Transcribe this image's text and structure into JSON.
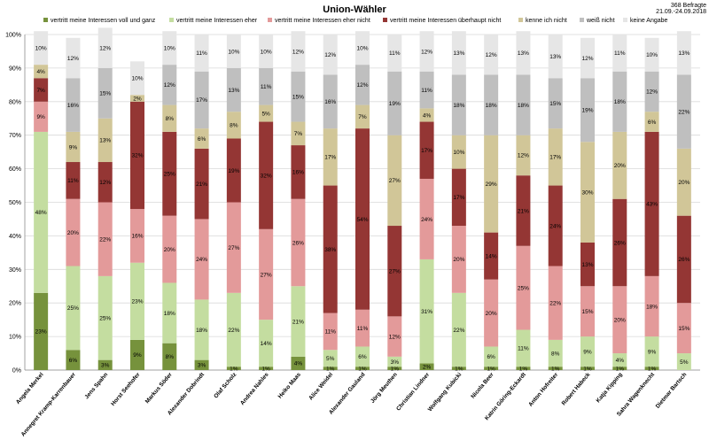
{
  "chart_data": {
    "type": "bar",
    "stacked": true,
    "percent": true,
    "title": "Union-Wähler",
    "sample_size": "368 Befragte",
    "date_range": "21.09.-24.09.2018",
    "ylim": [
      0,
      100
    ],
    "yticks": [
      "0%",
      "10%",
      "20%",
      "30%",
      "40%",
      "50%",
      "60%",
      "70%",
      "80%",
      "90%",
      "100%"
    ],
    "grid": true,
    "legend_position": "top",
    "categories": [
      "Angela Merkel",
      "Annegret Kramp-Karrenbauer",
      "Jens Spahn",
      "Horst Seehofer",
      "Markus Söder",
      "Alexander Dobrindt",
      "Olaf Scholz",
      "Andrea Nahles",
      "Heiko Maas",
      "Alice Weidel",
      "Alexander Gauland",
      "Jörg Meuthen",
      "Christian Lindner",
      "Wolfgang Kubicki",
      "Nicola Beer",
      "Katrin Göring-Eckardt",
      "Anton Hofreiter",
      "Robert Habeck",
      "Katja Kipping",
      "Sahra Wagenknecht",
      "Dietmar Bartsch"
    ],
    "series": [
      {
        "name": "vertritt meine Interessen voll und ganz",
        "color": "#76923c",
        "values": [
          23,
          6,
          3,
          9,
          8,
          3,
          1,
          1,
          4,
          1,
          1,
          1,
          2,
          1,
          1,
          1,
          1,
          1,
          1,
          1,
          0
        ]
      },
      {
        "name": "vertritt meine Interessen eher",
        "color": "#c4dda0",
        "values": [
          48,
          25,
          25,
          23,
          18,
          18,
          22,
          14,
          21,
          5,
          6,
          3,
          31,
          22,
          6,
          11,
          8,
          9,
          4,
          9,
          5
        ]
      },
      {
        "name": "vertritt meine Interessen eher nicht",
        "color": "#e39a9a",
        "values": [
          9,
          20,
          22,
          16,
          20,
          24,
          27,
          27,
          26,
          11,
          11,
          12,
          24,
          20,
          20,
          25,
          22,
          15,
          20,
          18,
          15
        ]
      },
      {
        "name": "vertritt meine Interessen überhaupt nicht",
        "color": "#943634",
        "values": [
          7,
          11,
          12,
          32,
          25,
          21,
          19,
          32,
          16,
          38,
          54,
          27,
          17,
          17,
          14,
          21,
          24,
          13,
          26,
          43,
          26
        ]
      },
      {
        "name": "kenne ich nicht",
        "color": "#d1c698",
        "values": [
          4,
          9,
          13,
          2,
          8,
          6,
          8,
          5,
          7,
          17,
          7,
          27,
          4,
          10,
          29,
          12,
          17,
          30,
          20,
          6,
          20
        ]
      },
      {
        "name": "weiß nicht",
        "color": "#bfbfbf",
        "values": [
          0,
          16,
          15,
          0,
          12,
          17,
          13,
          11,
          15,
          16,
          12,
          19,
          11,
          18,
          18,
          18,
          15,
          19,
          18,
          12,
          22
        ]
      },
      {
        "name": "keine Angabe",
        "color": "#e6e6e6",
        "values": [
          10,
          12,
          12,
          10,
          10,
          11,
          10,
          10,
          12,
          12,
          10,
          11,
          12,
          13,
          12,
          13,
          13,
          12,
          11,
          10,
          13
        ]
      }
    ]
  }
}
